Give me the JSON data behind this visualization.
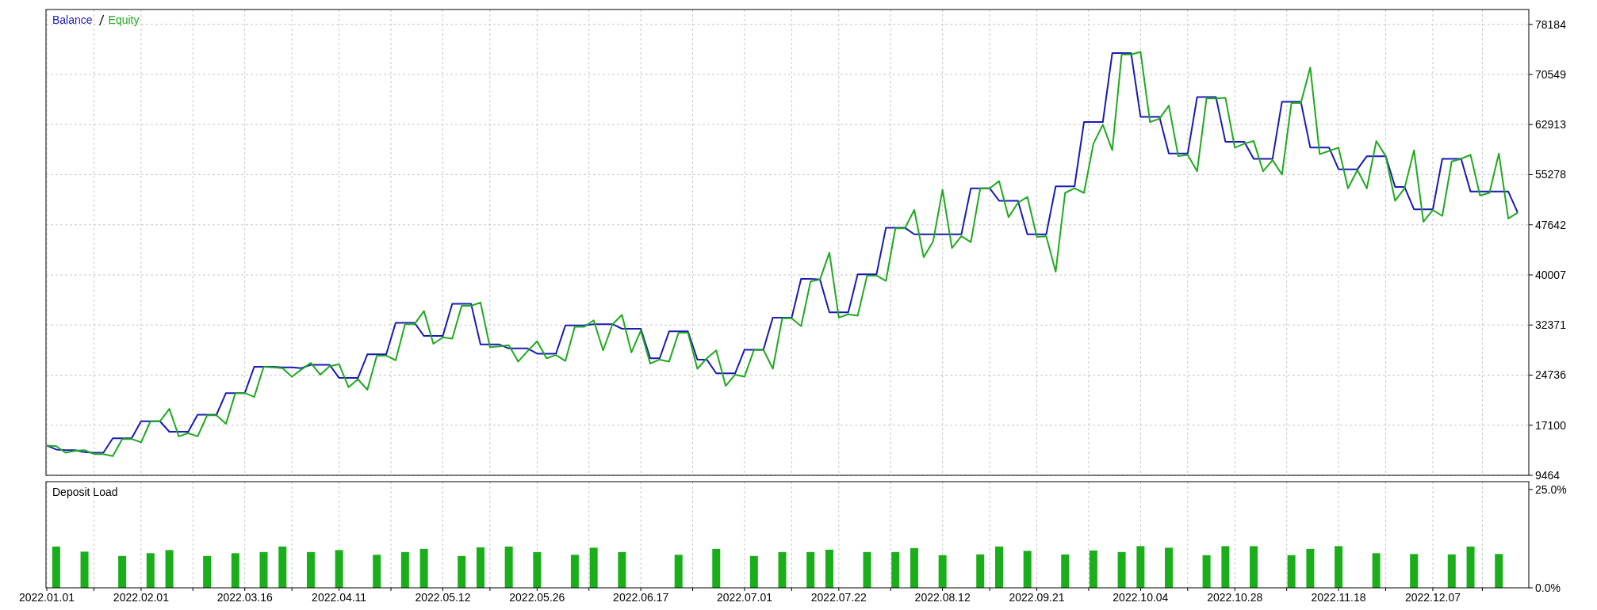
{
  "chart_data": [
    {
      "type": "line",
      "legend": "top left",
      "grid": true,
      "tick_labels": "y",
      "ylim": [
        9464,
        80450
      ],
      "yticks": [
        9464,
        17100,
        24736,
        32371,
        40007,
        47642,
        55278,
        62913,
        70549,
        78184
      ],
      "categories": [
        "2022.01.01",
        null,
        null,
        null,
        null,
        null,
        null,
        null,
        null,
        null,
        "2022.02.01",
        null,
        null,
        null,
        null,
        null,
        null,
        null,
        null,
        null,
        null,
        "2022.03.16",
        null,
        null,
        null,
        null,
        null,
        null,
        null,
        null,
        null,
        "2022.04.11",
        null,
        null,
        null,
        null,
        null,
        null,
        null,
        null,
        null,
        null,
        "2022.05.12",
        null,
        null,
        null,
        null,
        null,
        null,
        null,
        null,
        null,
        "2022.05.26",
        null,
        null,
        null,
        null,
        null,
        null,
        null,
        null,
        null,
        null,
        "2022.06.17",
        null,
        null,
        null,
        null,
        null,
        null,
        null,
        null,
        null,
        null,
        "2022.07.01",
        null,
        null,
        null,
        null,
        null,
        null,
        null,
        null,
        null,
        "2022.07.22",
        null,
        null,
        null,
        null,
        null,
        null,
        null,
        null,
        null,
        null,
        "2022.08.12",
        null,
        null,
        null,
        null,
        null,
        null,
        null,
        null,
        null,
        "2022.09.21",
        null,
        null,
        null,
        null,
        null,
        null,
        null,
        null,
        null,
        null,
        "2022.10.04",
        null,
        null,
        null,
        null,
        null,
        null,
        null,
        null,
        null,
        "2022.10.28",
        null,
        null,
        null,
        null,
        null,
        null,
        null,
        null,
        null,
        null,
        "2022.11.18",
        null,
        null,
        null,
        null,
        null,
        null,
        null,
        null,
        null,
        "2022.12.07",
        null,
        null,
        null,
        null,
        null,
        null,
        null,
        null,
        null
      ],
      "series": [
        {
          "name": "Balance",
          "color": "#1a1ab4",
          "values": [
            14000,
            13400,
            13300,
            13300,
            13000,
            12900,
            12900,
            15100,
            15100,
            15100,
            17700,
            17700,
            17700,
            16100,
            16100,
            16100,
            18700,
            18700,
            18700,
            22000,
            22000,
            22000,
            26000,
            26000,
            26000,
            25900,
            25900,
            25800,
            26300,
            26300,
            26300,
            24300,
            24300,
            24300,
            27900,
            27900,
            27900,
            32700,
            32700,
            32700,
            30700,
            30700,
            30700,
            35600,
            35600,
            35600,
            29400,
            29400,
            29400,
            28800,
            28800,
            28800,
            28000,
            28000,
            28000,
            32300,
            32300,
            32300,
            32500,
            32500,
            32500,
            31800,
            31800,
            31800,
            27300,
            27300,
            31400,
            31400,
            31400,
            27100,
            27100,
            25000,
            25000,
            25000,
            28600,
            28600,
            28600,
            33500,
            33500,
            33500,
            39400,
            39400,
            39300,
            34300,
            34300,
            34300,
            40100,
            40100,
            40100,
            47200,
            47200,
            47200,
            46200,
            46200,
            46200,
            46200,
            46200,
            46200,
            53200,
            53200,
            53200,
            51300,
            51300,
            51300,
            46200,
            46200,
            46200,
            53500,
            53500,
            53500,
            63300,
            63300,
            63300,
            73800,
            73800,
            73800,
            64100,
            64100,
            64100,
            58500,
            58500,
            58500,
            67100,
            67100,
            67100,
            60300,
            60300,
            60300,
            57700,
            57700,
            57700,
            66400,
            66400,
            66400,
            59400,
            59400,
            59400,
            56100,
            56100,
            56100,
            58100,
            58100,
            58100,
            53400,
            53400,
            50000,
            50000,
            50000,
            57700,
            57700,
            57700,
            52700,
            52700,
            52700,
            52700,
            52700,
            49500
          ]
        },
        {
          "name": "Equity",
          "color": "#1eaa1e",
          "values": [
            14000,
            13900,
            12900,
            13200,
            13300,
            12700,
            12700,
            12400,
            15000,
            15000,
            14500,
            17700,
            17700,
            19600,
            15400,
            15900,
            15400,
            18600,
            18600,
            17300,
            22000,
            22000,
            21400,
            26000,
            25900,
            25800,
            24500,
            25600,
            26600,
            24800,
            26100,
            26400,
            22900,
            24100,
            22500,
            27700,
            27700,
            27000,
            32500,
            32500,
            34500,
            29500,
            30500,
            30300,
            35300,
            35300,
            35800,
            29000,
            29100,
            29300,
            26800,
            28400,
            29900,
            27300,
            27800,
            26900,
            32100,
            32100,
            33100,
            28500,
            32500,
            33900,
            28200,
            31500,
            26500,
            27100,
            26800,
            31200,
            31200,
            25700,
            27300,
            28500,
            23100,
            24800,
            24500,
            28600,
            28600,
            25700,
            33400,
            33400,
            32200,
            39000,
            39300,
            43400,
            33500,
            34000,
            33800,
            39900,
            39900,
            39100,
            47100,
            47100,
            49900,
            42700,
            45100,
            53000,
            44100,
            45900,
            45000,
            53200,
            53200,
            54300,
            48800,
            51000,
            51900,
            45800,
            45900,
            40500,
            52500,
            53200,
            52500,
            60000,
            62900,
            59000,
            73600,
            73600,
            74000,
            63300,
            63800,
            65800,
            58100,
            58300,
            55800,
            66900,
            66900,
            67000,
            59400,
            60000,
            60400,
            55800,
            57500,
            55300,
            66200,
            66200,
            71600,
            58400,
            58900,
            59400,
            53200,
            56000,
            53200,
            60400,
            58100,
            51300,
            53200,
            59000,
            48100,
            49900,
            49000,
            57300,
            57700,
            58300,
            52100,
            52500,
            58500,
            48600,
            49500
          ]
        }
      ]
    },
    {
      "type": "bar",
      "title": "Deposit Load",
      "grid": "x",
      "color": "#1aaf1a",
      "ylim": [
        0,
        27
      ],
      "yticks": [
        {
          "value": 0,
          "label": "0.0%"
        },
        {
          "value": 25,
          "label": "25.0%"
        }
      ],
      "categories": [
        "2022.01.01",
        null,
        null,
        null,
        null,
        null,
        null,
        null,
        null,
        null,
        "2022.02.01",
        null,
        null,
        null,
        null,
        null,
        null,
        null,
        null,
        null,
        null,
        "2022.03.16",
        null,
        null,
        null,
        null,
        null,
        null,
        null,
        null,
        null,
        "2022.04.11",
        null,
        null,
        null,
        null,
        null,
        null,
        null,
        null,
        null,
        null,
        "2022.05.12",
        null,
        null,
        null,
        null,
        null,
        null,
        null,
        null,
        null,
        "2022.05.26",
        null,
        null,
        null,
        null,
        null,
        null,
        null,
        null,
        null,
        null,
        "2022.06.17",
        null,
        null,
        null,
        null,
        null,
        null,
        null,
        null,
        null,
        null,
        "2022.07.01",
        null,
        null,
        null,
        null,
        null,
        null,
        null,
        null,
        null,
        "2022.07.22",
        null,
        null,
        null,
        null,
        null,
        null,
        null,
        null,
        null,
        null,
        "2022.08.12",
        null,
        null,
        null,
        null,
        null,
        null,
        null,
        null,
        null,
        "2022.09.21",
        null,
        null,
        null,
        null,
        null,
        null,
        null,
        null,
        null,
        null,
        "2022.10.04",
        null,
        null,
        null,
        null,
        null,
        null,
        null,
        null,
        null,
        "2022.10.28",
        null,
        null,
        null,
        null,
        null,
        null,
        null,
        null,
        null,
        null,
        "2022.11.18",
        null,
        null,
        null,
        null,
        null,
        null,
        null,
        null,
        null,
        "2022.12.07",
        null,
        null,
        null,
        null,
        null,
        null,
        null,
        null,
        null
      ],
      "values": [
        null,
        10.5,
        null,
        null,
        9.2,
        null,
        null,
        null,
        8.1,
        null,
        null,
        8.8,
        null,
        9.6,
        null,
        null,
        null,
        8.1,
        null,
        null,
        8.8,
        null,
        null,
        9.1,
        null,
        10.5,
        null,
        null,
        9.1,
        null,
        null,
        9.6,
        null,
        null,
        null,
        8.4,
        null,
        null,
        9.1,
        null,
        9.9,
        null,
        null,
        null,
        8.1,
        null,
        10.3,
        null,
        null,
        10.5,
        null,
        null,
        9.1,
        null,
        null,
        null,
        8.4,
        null,
        10.2,
        null,
        null,
        9.1,
        null,
        null,
        null,
        null,
        null,
        8.4,
        null,
        null,
        null,
        9.9,
        null,
        null,
        null,
        8.1,
        null,
        null,
        9.1,
        null,
        null,
        9.1,
        null,
        9.7,
        null,
        null,
        null,
        9.1,
        null,
        null,
        9.1,
        null,
        10.1,
        null,
        null,
        8.3,
        null,
        null,
        null,
        8.5,
        null,
        10.5,
        null,
        null,
        9.4,
        null,
        null,
        null,
        8.5,
        null,
        null,
        9.5,
        null,
        null,
        9.1,
        null,
        10.6,
        null,
        null,
        10.2,
        null,
        null,
        null,
        8.3,
        null,
        10.6,
        null,
        null,
        10.6,
        null,
        null,
        null,
        8.3,
        null,
        9.9,
        null,
        null,
        10.6,
        null,
        null,
        null,
        8.8,
        null,
        null,
        null,
        8.6,
        null,
        null,
        null,
        8.5,
        null,
        10.5,
        null,
        null,
        8.6,
        null,
        null
      ]
    }
  ]
}
